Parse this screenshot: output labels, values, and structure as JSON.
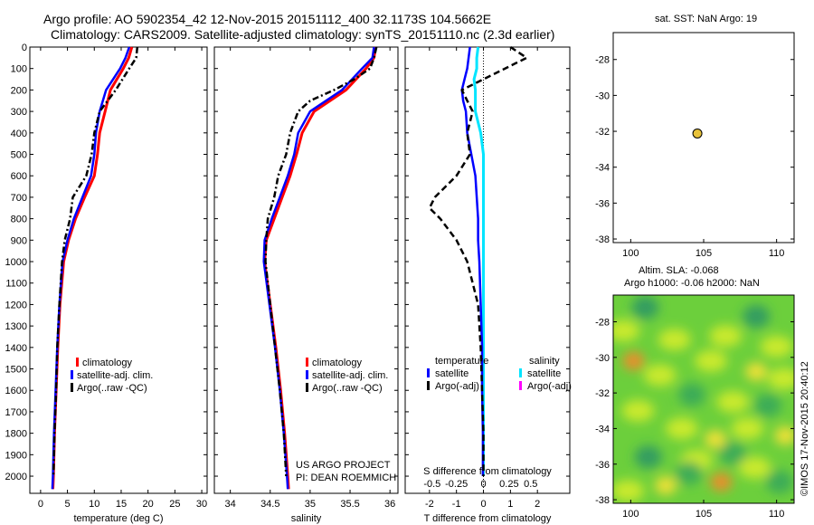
{
  "header": {
    "title_line1": "Argo profile: AO 5902354_42 12-Nov-2015 20151112_400 32.1173S 104.5662E",
    "title_line2": "Climatology: CARS2009. Satellite-adjusted climatology: synTS_20151110.nc (2.3d earlier)"
  },
  "side_titles": {
    "sst": "sat. SST: NaN Argo: 19",
    "sla1": "Altim. SLA: -0.068",
    "sla2": "Argo h1000: -0.06 h2000: NaN",
    "imos": "©IMOS 17-Nov-2015 20:40:12"
  },
  "credits": {
    "line1": "US ARGO PROJECT",
    "line2": "PI: DEAN ROEMMICH"
  },
  "colors": {
    "climatology": "#ff0000",
    "satellite": "#0000ff",
    "argo": "#000000",
    "salinity_satellite": "#00e5ff",
    "salinity_argo": "#ff00ff",
    "map_marker": "#e8c23a"
  },
  "chart_data": [
    {
      "type": "line",
      "panel": "temperature",
      "xlabel": "temperature (deg C)",
      "xlim": [
        -2,
        31
      ],
      "xticks": [
        0,
        5,
        10,
        15,
        20,
        25,
        30
      ],
      "ylim": [
        2080,
        0
      ],
      "yticks": [
        0,
        100,
        200,
        300,
        400,
        500,
        600,
        700,
        800,
        900,
        1000,
        1100,
        1200,
        1300,
        1400,
        1500,
        1600,
        1700,
        1800,
        1900,
        2000
      ],
      "legend": [
        "climatology",
        "satellite-adj. clim.",
        "Argo(..raw -QC)"
      ],
      "series": [
        {
          "name": "climatology",
          "depth": [
            0,
            50,
            100,
            200,
            300,
            400,
            500,
            600,
            700,
            800,
            900,
            1000,
            1200,
            1400,
            1600,
            1800,
            2000,
            2060
          ],
          "x": [
            17.0,
            16.4,
            15.4,
            13.0,
            12.0,
            11.0,
            10.6,
            10.0,
            8.2,
            6.5,
            5.2,
            4.3,
            3.6,
            3.2,
            2.9,
            2.6,
            2.4,
            2.3
          ]
        },
        {
          "name": "satellite-adj. clim.",
          "depth": [
            0,
            50,
            100,
            200,
            300,
            400,
            500,
            600,
            700,
            800,
            900,
            1000,
            1200,
            1400,
            1600,
            1800,
            2000,
            2060
          ],
          "x": [
            16.5,
            15.8,
            14.8,
            12.2,
            11.0,
            10.3,
            10.0,
            9.4,
            7.8,
            6.2,
            5.0,
            4.1,
            3.5,
            3.1,
            2.8,
            2.5,
            2.3,
            2.2
          ]
        },
        {
          "name": "Argo(..raw -QC)",
          "depth": [
            0,
            50,
            100,
            200,
            250,
            300,
            400,
            500,
            600,
            700,
            800,
            900,
            1000,
            1200,
            1400,
            1600,
            1800,
            2000
          ],
          "x": [
            18.0,
            17.8,
            16.5,
            14.0,
            12.5,
            11.0,
            10.0,
            9.5,
            8.5,
            6.0,
            5.5,
            4.5,
            4.0,
            3.5,
            3.1,
            2.9,
            2.6,
            2.4
          ]
        }
      ]
    },
    {
      "type": "line",
      "panel": "salinity",
      "xlabel": "salinity",
      "xlim": [
        33.8,
        36.1
      ],
      "xticks": [
        34,
        34.5,
        35,
        35.5,
        36
      ],
      "ylim": [
        2080,
        0
      ],
      "legend": [
        "climatology",
        "satellite-adj. clim.",
        "Argo(..raw -QC)"
      ],
      "series": [
        {
          "name": "climatology",
          "depth": [
            0,
            50,
            100,
            200,
            300,
            400,
            500,
            600,
            700,
            800,
            900,
            1000,
            1200,
            1400,
            1600,
            1800,
            2000,
            2060
          ],
          "x": [
            35.82,
            35.8,
            35.7,
            35.45,
            35.05,
            34.9,
            34.83,
            34.75,
            34.65,
            34.55,
            34.45,
            34.43,
            34.5,
            34.57,
            34.63,
            34.68,
            34.72,
            34.73
          ]
        },
        {
          "name": "satellite-adj. clim.",
          "depth": [
            0,
            50,
            100,
            200,
            300,
            400,
            500,
            600,
            700,
            800,
            900,
            1000,
            1200,
            1400,
            1600,
            1800,
            2000,
            2060
          ],
          "x": [
            35.8,
            35.78,
            35.65,
            35.4,
            35.0,
            34.85,
            34.8,
            34.72,
            34.62,
            34.52,
            34.43,
            34.42,
            34.49,
            34.56,
            34.62,
            34.67,
            34.71,
            34.72
          ]
        },
        {
          "name": "Argo(..raw -QC)",
          "depth": [
            0,
            50,
            100,
            150,
            200,
            250,
            300,
            400,
            500,
            600,
            700,
            800,
            900,
            1000,
            1200,
            1400,
            1600,
            1800,
            2000
          ],
          "x": [
            35.83,
            35.8,
            35.75,
            35.55,
            35.3,
            35.0,
            34.85,
            34.75,
            34.7,
            34.6,
            34.55,
            34.47,
            34.45,
            34.44,
            34.5,
            34.56,
            34.62,
            34.67,
            34.7
          ]
        }
      ]
    },
    {
      "type": "line",
      "panel": "difference",
      "xlabel": "T difference from climatology",
      "xlabel_top": "S difference from climatology",
      "xlim": [
        -2.9,
        3.2
      ],
      "xticks": [
        -2,
        -1,
        0,
        1,
        2
      ],
      "s_ticks": [
        "-0.5",
        "-0.25",
        "0",
        "0.25",
        "0.5"
      ],
      "ylim": [
        2080,
        0
      ],
      "legend_headers": [
        "temperature",
        "salinity"
      ],
      "legend": [
        "satellite",
        "Argo(-adj)",
        "satellite",
        "Argo(-adj)"
      ],
      "series": [
        {
          "name": "temperature satellite",
          "depth": [
            0,
            50,
            100,
            150,
            200,
            250,
            300,
            400,
            500,
            600,
            700,
            800,
            900,
            1000,
            1200,
            1400,
            1600,
            1800,
            2000
          ],
          "x": [
            -0.5,
            -0.55,
            -0.6,
            -0.7,
            -0.8,
            -0.75,
            -0.65,
            -0.6,
            -0.45,
            -0.3,
            -0.25,
            -0.2,
            -0.2,
            -0.15,
            -0.1,
            -0.05,
            -0.05,
            -0.02,
            -0.02
          ]
        },
        {
          "name": "temperature Argo(-adj)",
          "depth": [
            0,
            50,
            75,
            100,
            150,
            200,
            250,
            300,
            400,
            500,
            600,
            700,
            750,
            800,
            900,
            1000,
            1100,
            1200,
            1400,
            1600,
            1800,
            2000
          ],
          "x": [
            1.0,
            1.6,
            1.2,
            0.8,
            0.0,
            -0.8,
            -0.6,
            -0.4,
            -0.6,
            -0.5,
            -1.0,
            -1.8,
            -2.0,
            -1.6,
            -1.0,
            -0.6,
            -0.4,
            -0.2,
            -0.1,
            -0.05,
            0.0,
            0.0
          ]
        },
        {
          "name": "salinity satellite",
          "depth": [
            0,
            50,
            100,
            150,
            200,
            300,
            400,
            500,
            600,
            700,
            800,
            900,
            1000,
            1200,
            1400,
            1600,
            1800,
            2000
          ],
          "x": [
            -0.2,
            -0.25,
            -0.25,
            -0.35,
            -0.3,
            -0.3,
            -0.1,
            0.0,
            0.0,
            0.0,
            0.0,
            0.0,
            0.0,
            0.0,
            0.0,
            0.0,
            0.0,
            0.0
          ]
        },
        {
          "name": "salinity Argo(-adj)",
          "depth": [],
          "x": []
        }
      ]
    },
    {
      "type": "scatter",
      "panel": "sst",
      "xlim": [
        98.8,
        111.2
      ],
      "xticks": [
        100,
        105,
        110
      ],
      "ylim": [
        -38.2,
        -26.5
      ],
      "yticks": [
        -28,
        -30,
        -32,
        -34,
        -36,
        -38
      ],
      "points": [
        {
          "lon": 104.57,
          "lat": -32.12
        }
      ]
    },
    {
      "type": "heatmap",
      "panel": "sla",
      "xlim": [
        98.8,
        111.2
      ],
      "xticks": [
        100,
        105,
        110
      ],
      "ylim": [
        -38.2,
        -26.5
      ],
      "yticks": [
        -28,
        -30,
        -32,
        -34,
        -36,
        -38
      ],
      "blobs": [
        {
          "lon": 100.2,
          "lat": -30.2,
          "v": 1.0
        },
        {
          "lon": 105.8,
          "lat": -34.6,
          "v": 0.6
        },
        {
          "lon": 106.2,
          "lat": -37.0,
          "v": 0.9
        },
        {
          "lon": 102.4,
          "lat": -37.2,
          "v": 0.4
        },
        {
          "lon": 108.6,
          "lat": -30.8,
          "v": 0.3
        },
        {
          "lon": 110.6,
          "lat": -34.4,
          "v": 0.5
        },
        {
          "lon": 101.0,
          "lat": -27.2,
          "v": -0.9
        },
        {
          "lon": 104.2,
          "lat": -32.1,
          "v": -0.8
        },
        {
          "lon": 108.6,
          "lat": -27.7,
          "v": -1.0
        },
        {
          "lon": 109.4,
          "lat": -32.7,
          "v": -0.8
        },
        {
          "lon": 101.2,
          "lat": -35.6,
          "v": -0.9
        },
        {
          "lon": 107.0,
          "lat": -35.4,
          "v": -0.7
        },
        {
          "lon": 104.0,
          "lat": -36.5,
          "v": -0.6
        },
        {
          "lon": 110.2,
          "lat": -37.0,
          "v": -0.7
        }
      ]
    }
  ]
}
